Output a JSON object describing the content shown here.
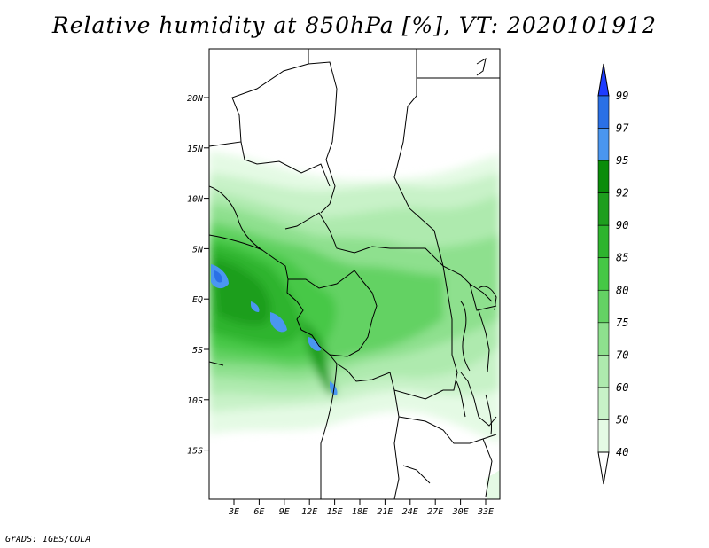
{
  "title": "Relative humidity at 850hPa [%], VT: 2020101912",
  "credit": "GrADS: IGES/COLA",
  "map": {
    "lat_ticks": [
      "20N",
      "15N",
      "10N",
      "5N",
      "EQ",
      "5S",
      "10S",
      "15S"
    ],
    "lon_ticks": [
      "3E",
      "6E",
      "9E",
      "12E",
      "15E",
      "18E",
      "21E",
      "24E",
      "27E",
      "30E",
      "33E"
    ]
  },
  "colorbar": {
    "levels": [
      "99",
      "97",
      "95",
      "92",
      "90",
      "85",
      "80",
      "75",
      "70",
      "60",
      "50",
      "40"
    ],
    "colors": [
      "#1e3cff",
      "#2a70e6",
      "#4a96f0",
      "#0a8c0a",
      "#1e9e1e",
      "#2eb42e",
      "#46c846",
      "#64d264",
      "#8ee08e",
      "#aeeaae",
      "#c8f2c8",
      "#e4fae4",
      "#ffffff"
    ]
  },
  "colors": {
    "frame": "#000000",
    "background": "#ffffff"
  }
}
